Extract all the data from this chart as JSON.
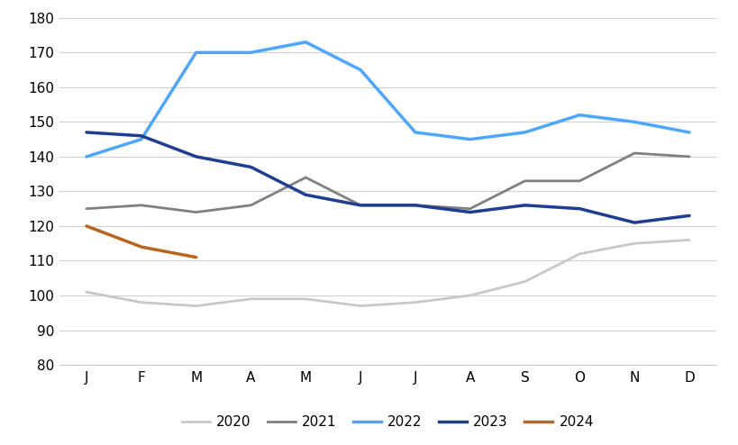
{
  "months": [
    "J",
    "F",
    "M",
    "A",
    "M",
    "J",
    "J",
    "A",
    "S",
    "O",
    "N",
    "D"
  ],
  "series": {
    "2020": [
      101,
      98,
      97,
      99,
      99,
      97,
      98,
      100,
      104,
      112,
      115,
      116
    ],
    "2021": [
      125,
      126,
      124,
      126,
      134,
      126,
      126,
      125,
      133,
      133,
      141,
      140
    ],
    "2022": [
      140,
      145,
      170,
      170,
      173,
      165,
      147,
      145,
      147,
      152,
      150,
      147
    ],
    "2023": [
      147,
      146,
      140,
      137,
      129,
      126,
      126,
      124,
      126,
      125,
      121,
      123
    ],
    "2024": [
      120,
      114,
      111,
      null,
      null,
      null,
      null,
      null,
      null,
      null,
      null,
      null
    ]
  },
  "colors": {
    "2020": "#c8c8c8",
    "2021": "#808080",
    "2022": "#4da6ff",
    "2023": "#1f3d91",
    "2024": "#b8651e"
  },
  "linewidths": {
    "2020": 2.0,
    "2021": 2.0,
    "2022": 2.5,
    "2023": 2.5,
    "2024": 2.5
  },
  "ylim": [
    80,
    180
  ],
  "yticks": [
    80,
    90,
    100,
    110,
    120,
    130,
    140,
    150,
    160,
    170,
    180
  ],
  "background_color": "#ffffff",
  "grid_color": "#d0d0d0",
  "figsize": [
    8.2,
    4.94
  ],
  "dpi": 100
}
